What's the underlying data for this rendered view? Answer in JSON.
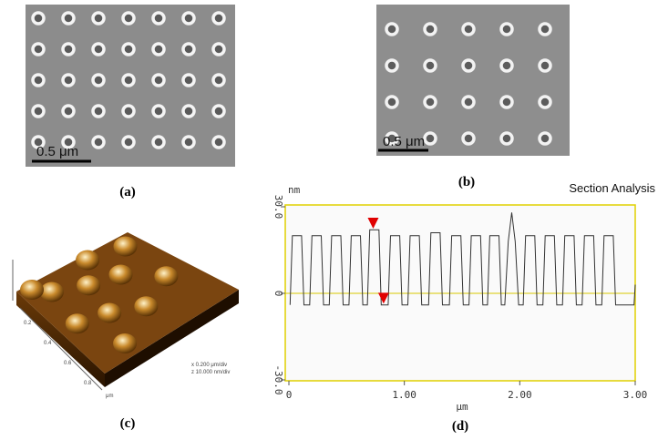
{
  "panels": {
    "a": {
      "caption": "(a)",
      "scale_bar": "0.5 μm"
    },
    "b": {
      "caption": "(b)",
      "scale_bar": "0.5 μm"
    },
    "c": {
      "caption": "(c)",
      "axis_ticks": [
        "0.2",
        "0.4",
        "0.6",
        "0.8"
      ],
      "axis_unit": "μm",
      "legend": [
        "x  0.200 μm/div",
        "z  10.000 nm/div"
      ]
    },
    "d": {
      "caption": "(d)"
    }
  },
  "chart_data": {
    "type": "line",
    "title": "Section Analysis",
    "y_label": "nm",
    "x_label": "μm",
    "color": "#333333",
    "xlim": [
      0,
      3
    ],
    "ylim": [
      -30,
      30
    ],
    "xticks": [
      0,
      {
        "value": 1,
        "label": "1.00"
      },
      {
        "value": 2,
        "label": "2.00"
      },
      {
        "value": 3,
        "label": "3.00"
      }
    ],
    "yticks": [
      {
        "value": -30,
        "label": "-30.0"
      },
      0,
      {
        "value": 30,
        "label": "30.0"
      }
    ],
    "x": [
      0.01,
      0.03,
      0.11,
      0.13,
      0.18,
      0.2,
      0.28,
      0.3,
      0.35,
      0.37,
      0.45,
      0.47,
      0.52,
      0.54,
      0.62,
      0.64,
      0.68,
      0.7,
      0.78,
      0.8,
      0.86,
      0.88,
      0.96,
      0.98,
      1.03,
      1.05,
      1.13,
      1.15,
      1.21,
      1.23,
      1.31,
      1.33,
      1.39,
      1.41,
      1.49,
      1.51,
      1.56,
      1.58,
      1.66,
      1.68,
      1.72,
      1.74,
      1.82,
      1.84,
      1.87,
      1.9,
      1.93,
      1.96,
      1.99,
      2.03,
      2.05,
      2.13,
      2.15,
      2.2,
      2.22,
      2.3,
      2.32,
      2.37,
      2.39,
      2.47,
      2.49,
      2.54,
      2.56,
      2.64,
      2.66,
      2.71,
      2.73,
      2.81,
      2.83,
      2.99,
      3.0
    ],
    "values": [
      -4,
      20,
      20,
      -4,
      -4,
      20,
      20,
      -4,
      -4,
      20,
      20,
      -4,
      -4,
      20,
      20,
      -4,
      -4,
      22,
      22,
      -4,
      -4,
      20,
      20,
      -4,
      -4,
      20,
      20,
      -4,
      -4,
      21,
      21,
      -4,
      -4,
      20,
      20,
      -4,
      -4,
      20,
      20,
      -4,
      -4,
      20,
      20,
      -4,
      -4,
      18,
      28,
      18,
      -4,
      -4,
      20,
      20,
      -4,
      -4,
      20,
      20,
      -4,
      -4,
      20,
      20,
      -4,
      -4,
      20,
      20,
      -4,
      -4,
      20,
      20,
      -4,
      -4,
      3
    ],
    "markers": {
      "x": [
        0.73,
        0.82
      ],
      "values": [
        24,
        -2
      ],
      "color": "#e00000"
    },
    "zero_line_color": "#d8c800",
    "frame_color": "#e0d000"
  }
}
